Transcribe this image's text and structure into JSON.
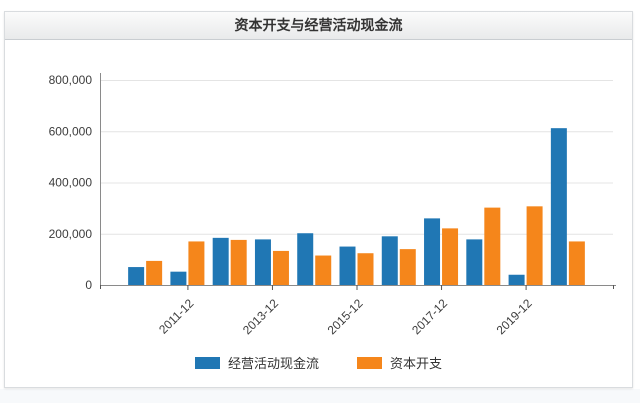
{
  "chart_data": {
    "type": "bar",
    "title": "资本开支与经营活动现金流",
    "categories": [
      "2010-12",
      "2011-12",
      "2012-12",
      "2013-12",
      "2014-12",
      "2015-12",
      "2016-12",
      "2017-12",
      "2018-12",
      "2019-12",
      "2020-12"
    ],
    "x_tick_labels_shown": [
      "2011-12",
      "2013-12",
      "2015-12",
      "2017-12",
      "2019-12"
    ],
    "series": [
      {
        "name": "经营活动现金流",
        "color": "#2077b4",
        "values": [
          70000,
          52000,
          184000,
          178000,
          202000,
          150000,
          190000,
          260000,
          178000,
          40000,
          612000
        ]
      },
      {
        "name": "资本开支",
        "color": "#f5861b",
        "values": [
          94000,
          170000,
          176000,
          133000,
          115000,
          124000,
          140000,
          221000,
          302000,
          307000,
          170000
        ]
      }
    ],
    "ylim": [
      0,
      800000
    ],
    "y_ticks": [
      0,
      200000,
      400000,
      600000,
      800000
    ],
    "y_tick_labels": [
      "0",
      "200,000",
      "400,000",
      "600,000",
      "800,000"
    ],
    "grid": true,
    "legend_position": "bottom",
    "colors": {
      "grid_line": "#e4e4e4",
      "axis_line": "#8a8a8a",
      "tick_mark": "#555555",
      "tick_label": "#3d3d3d"
    }
  }
}
